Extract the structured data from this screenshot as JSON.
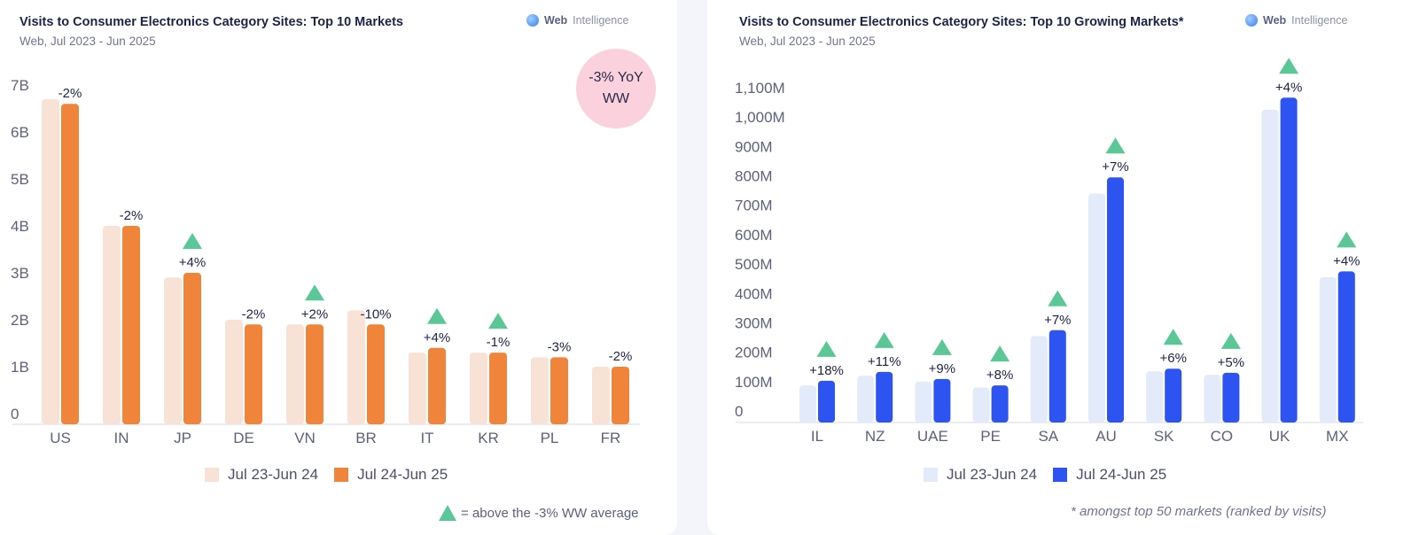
{
  "left": {
    "title": "Visits to Consumer Electronics Category Sites: Top 10 Markets",
    "subtitle": "Web, Jul 2023 - Jun 2025",
    "brand_bold": "Web",
    "brand_rest": "Intelligence",
    "badge": {
      "line1": "-3% YoY",
      "line2": "WW"
    },
    "legend": {
      "prev": "Jul 23-Jun 24",
      "curr": "Jul 24-Jun 25"
    },
    "note": "= above the -3% WW average",
    "colors": {
      "prev": "#f7e2d5",
      "curr": "#f0843a",
      "triangle": "#5bc796"
    }
  },
  "right": {
    "title": "Visits to Consumer Electronics Category Sites: Top 10 Growing Markets*",
    "subtitle": "Web, Jul 2023 - Jun 2025",
    "brand_bold": "Web",
    "brand_rest": "Intelligence",
    "legend": {
      "prev": "Jul 23-Jun 24",
      "curr": "Jul 24-Jun 25"
    },
    "note": "* amongst top 50 markets (ranked by visits)",
    "colors": {
      "prev": "#e3eaf9",
      "curr": "#2d54f0",
      "triangle": "#5bc796"
    }
  },
  "chart_data": [
    {
      "type": "bar",
      "title": "Visits to Consumer Electronics Category Sites: Top 10 Markets",
      "categories": [
        "US",
        "IN",
        "JP",
        "DE",
        "VN",
        "BR",
        "IT",
        "KR",
        "PL",
        "FR"
      ],
      "series": [
        {
          "name": "Jul 23-Jun 24",
          "values": [
            6.7,
            4.0,
            2.9,
            2.0,
            1.9,
            2.2,
            1.3,
            1.3,
            1.2,
            1.0
          ]
        },
        {
          "name": "Jul 24-Jun 25",
          "values": [
            6.6,
            4.0,
            3.0,
            1.9,
            1.9,
            1.9,
            1.4,
            1.3,
            1.2,
            1.0
          ]
        }
      ],
      "labels": [
        "-2%",
        "-2%",
        "+4%",
        "-2%",
        "+2%",
        "-10%",
        "+4%",
        "-1%",
        "-3%",
        "-2%"
      ],
      "above_average": [
        false,
        false,
        true,
        false,
        true,
        false,
        true,
        true,
        false,
        false
      ],
      "yticks": [
        0,
        1,
        2,
        3,
        4,
        5,
        6,
        7
      ],
      "ytick_labels": [
        "0",
        "1B",
        "2B",
        "3B",
        "4B",
        "5B",
        "6B",
        "7B"
      ],
      "ylim": [
        0,
        7
      ],
      "unit": "B"
    },
    {
      "type": "bar",
      "title": "Visits to Consumer Electronics Category Sites: Top 10 Growing Markets*",
      "categories": [
        "IL",
        "NZ",
        "UAE",
        "PE",
        "SA",
        "AU",
        "SK",
        "CO",
        "UK",
        "MX"
      ],
      "series": [
        {
          "name": "Jul 23-Jun 24",
          "values": [
            87,
            120,
            100,
            80,
            255,
            740,
            135,
            123,
            1025,
            455
          ]
        },
        {
          "name": "Jul 24-Jun 25",
          "values": [
            103,
            133,
            109,
            87,
            275,
            795,
            144,
            130,
            1066,
            475
          ]
        }
      ],
      "labels": [
        "+18%",
        "+11%",
        "+9%",
        "+8%",
        "+7%",
        "+7%",
        "+6%",
        "+5%",
        "+4%",
        "+4%"
      ],
      "above_average": [
        true,
        true,
        true,
        true,
        true,
        true,
        true,
        true,
        true,
        true
      ],
      "yticks": [
        0,
        100,
        200,
        300,
        400,
        500,
        600,
        700,
        800,
        900,
        1000,
        1100
      ],
      "ytick_labels": [
        "0",
        "100M",
        "200M",
        "300M",
        "400M",
        "500M",
        "600M",
        "700M",
        "800M",
        "900M",
        "1,000M",
        "1,100M"
      ],
      "ylim": [
        0,
        1100
      ],
      "unit": "M"
    }
  ]
}
